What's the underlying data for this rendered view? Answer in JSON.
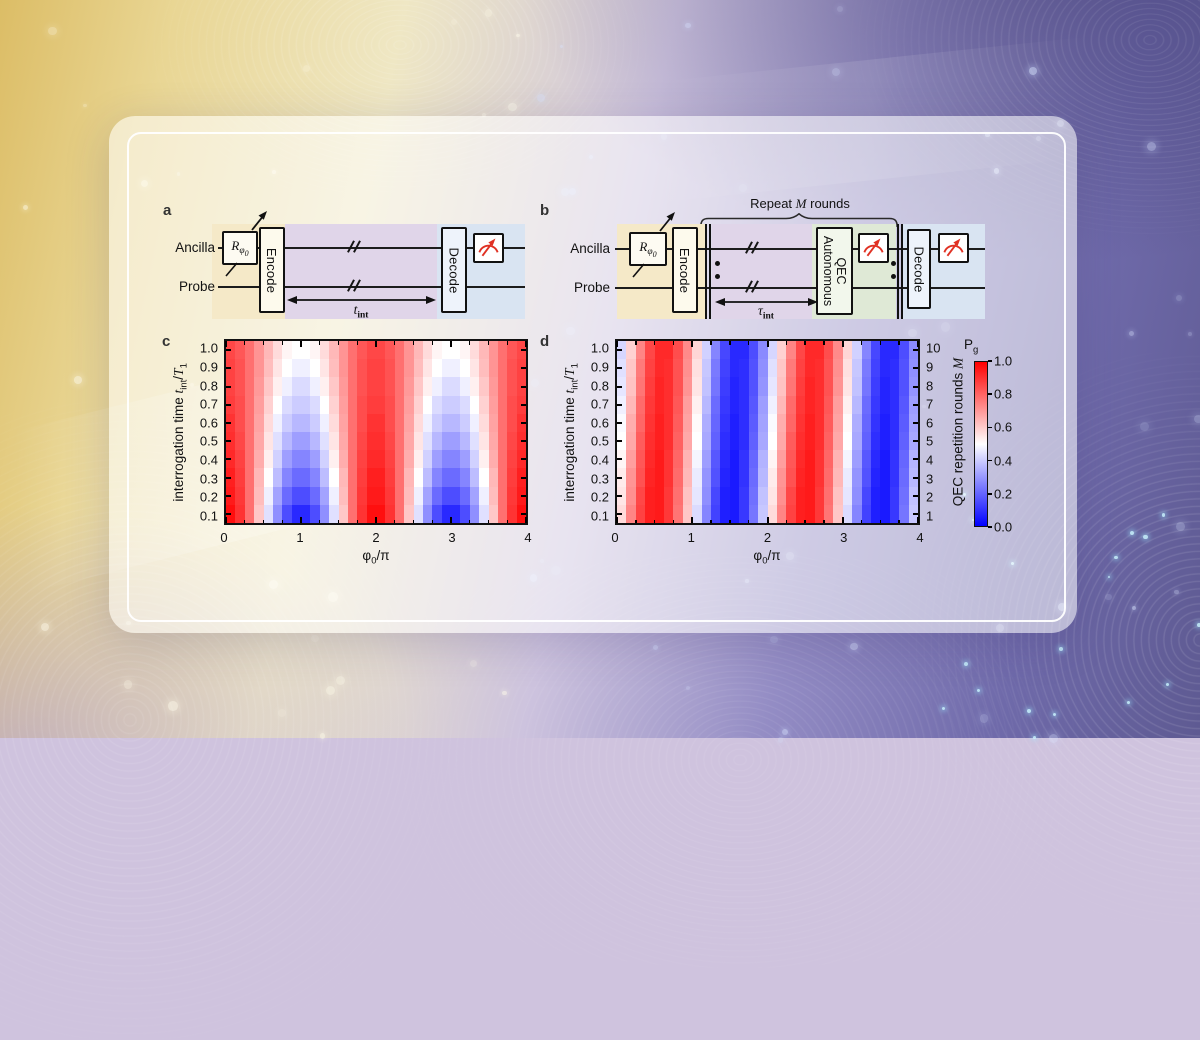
{
  "colors": {
    "region_yellow": "#f5e9c8",
    "region_purple": "#e0d5e9",
    "region_green": "#dfe9d6",
    "region_blue": "#d9e4f2",
    "meter_red": "#e03123",
    "cmap_low": "#0000ff",
    "cmap_mid": "#ffffff",
    "cmap_high": "#ff0000"
  },
  "circuit_a": {
    "panel_label": "a",
    "wires": {
      "ancilla": "Ancilla",
      "probe": "Probe"
    },
    "r_gate": {
      "base": "R",
      "sub": "φ",
      "subsub": "0"
    },
    "encode": "Encode",
    "decode": "Decode",
    "interrogation": {
      "base": "t",
      "sub": "int"
    }
  },
  "circuit_b": {
    "panel_label": "b",
    "repeat": {
      "pre": "Repeat ",
      "m": "M",
      "post": " rounds"
    },
    "wires": {
      "ancilla": "Ancilla",
      "probe": "Probe"
    },
    "r_gate": {
      "base": "R",
      "sub": "φ",
      "subsub": "0"
    },
    "encode": "Encode",
    "qec": {
      "line1": "Autonomous",
      "line2": "QEC"
    },
    "decode": "Decode",
    "interrogation": {
      "base": "τ",
      "sub": "int"
    }
  },
  "heatmap_c": {
    "panel_label": "c",
    "ylabel": {
      "prefix": "interrogation time ",
      "t": "t",
      "t_sub": "int",
      "slash": "/",
      "T": "T",
      "T_sub": "1"
    },
    "xlabel": {
      "phi": "φ",
      "phi_sub": "0",
      "slash": "/",
      "pi": "π"
    },
    "x_tick_labels": [
      "0",
      "1",
      "2",
      "3",
      "4"
    ],
    "y_tick_labels": [
      "1.0",
      "0.9",
      "0.8",
      "0.7",
      "0.6",
      "0.5",
      "0.4",
      "0.3",
      "0.2",
      "0.1"
    ]
  },
  "heatmap_d": {
    "panel_label": "d",
    "ylabel": {
      "prefix": "interrogation time ",
      "t": "t",
      "t_sub": "int",
      "slash": "/",
      "T": "T",
      "T_sub": "1"
    },
    "xlabel": {
      "phi": "φ",
      "phi_sub": "0",
      "slash": "/",
      "pi": "π"
    },
    "y2label": {
      "prefix": "QEC repetition rounds ",
      "m": "M"
    },
    "x_tick_labels": [
      "0",
      "1",
      "2",
      "3",
      "4"
    ],
    "y_tick_labels": [
      "1.0",
      "0.9",
      "0.8",
      "0.7",
      "0.6",
      "0.5",
      "0.4",
      "0.3",
      "0.2",
      "0.1"
    ],
    "y2_tick_labels": [
      "10",
      "9",
      "8",
      "7",
      "6",
      "5",
      "4",
      "3",
      "2",
      "1"
    ]
  },
  "colorbar": {
    "title": {
      "base": "P",
      "sub": "g"
    },
    "tick_labels": [
      "1.0",
      "0.8",
      "0.6",
      "0.4",
      "0.2",
      "0.0"
    ]
  },
  "chart_data": [
    {
      "id": "c",
      "type": "heatmap",
      "xlabel": "φ0/π",
      "ylabel": "interrogation time t_int/T1",
      "value_name": "Pg",
      "colormap": "blue-white-red (0=blue, 0.5=white, 1=red)",
      "x_range": [
        0,
        4
      ],
      "x_ticks": [
        0,
        1,
        2,
        3,
        4
      ],
      "x_minor_tick_step": 0.25,
      "n_cols": 32,
      "col_centers_start": 0.0625,
      "col_step": 0.125,
      "y_ticks": [
        0.1,
        0.2,
        0.3,
        0.4,
        0.5,
        0.6,
        0.7,
        0.8,
        0.9,
        1.0
      ],
      "rows_bottom_to_top_t": [
        0.1,
        0.2,
        0.3,
        0.4,
        0.5,
        0.6,
        0.7,
        0.8,
        0.9,
        1.0
      ],
      "values": [
        [
          0.97,
          0.9,
          0.78,
          0.61,
          0.44,
          0.28,
          0.15,
          0.08,
          0.08,
          0.15,
          0.28,
          0.44,
          0.61,
          0.78,
          0.9,
          0.97,
          0.97,
          0.9,
          0.78,
          0.61,
          0.44,
          0.28,
          0.15,
          0.08,
          0.08,
          0.15,
          0.28,
          0.44,
          0.61,
          0.78,
          0.9,
          0.97
        ],
        [
          0.95,
          0.89,
          0.78,
          0.63,
          0.47,
          0.32,
          0.21,
          0.15,
          0.15,
          0.21,
          0.32,
          0.47,
          0.63,
          0.78,
          0.89,
          0.95,
          0.95,
          0.89,
          0.78,
          0.63,
          0.47,
          0.32,
          0.21,
          0.15,
          0.15,
          0.21,
          0.32,
          0.47,
          0.63,
          0.78,
          0.89,
          0.95
        ],
        [
          0.94,
          0.88,
          0.78,
          0.64,
          0.5,
          0.37,
          0.26,
          0.21,
          0.21,
          0.26,
          0.37,
          0.5,
          0.64,
          0.78,
          0.88,
          0.94,
          0.94,
          0.88,
          0.78,
          0.64,
          0.5,
          0.37,
          0.26,
          0.21,
          0.21,
          0.26,
          0.37,
          0.5,
          0.64,
          0.78,
          0.88,
          0.94
        ],
        [
          0.92,
          0.87,
          0.78,
          0.66,
          0.53,
          0.41,
          0.31,
          0.26,
          0.26,
          0.31,
          0.41,
          0.53,
          0.66,
          0.78,
          0.87,
          0.92,
          0.92,
          0.87,
          0.78,
          0.66,
          0.53,
          0.41,
          0.31,
          0.26,
          0.26,
          0.31,
          0.41,
          0.53,
          0.66,
          0.78,
          0.87,
          0.92
        ],
        [
          0.91,
          0.86,
          0.78,
          0.67,
          0.55,
          0.44,
          0.36,
          0.31,
          0.31,
          0.36,
          0.44,
          0.55,
          0.67,
          0.78,
          0.86,
          0.91,
          0.91,
          0.86,
          0.78,
          0.67,
          0.55,
          0.44,
          0.36,
          0.31,
          0.31,
          0.36,
          0.44,
          0.55,
          0.67,
          0.78,
          0.86,
          0.91
        ],
        [
          0.9,
          0.85,
          0.78,
          0.68,
          0.57,
          0.47,
          0.4,
          0.36,
          0.36,
          0.4,
          0.47,
          0.57,
          0.68,
          0.78,
          0.85,
          0.9,
          0.9,
          0.85,
          0.78,
          0.68,
          0.57,
          0.47,
          0.4,
          0.36,
          0.36,
          0.4,
          0.47,
          0.57,
          0.68,
          0.78,
          0.85,
          0.9
        ],
        [
          0.88,
          0.85,
          0.78,
          0.69,
          0.59,
          0.5,
          0.43,
          0.4,
          0.4,
          0.43,
          0.5,
          0.59,
          0.69,
          0.78,
          0.85,
          0.88,
          0.88,
          0.85,
          0.78,
          0.69,
          0.59,
          0.5,
          0.43,
          0.4,
          0.4,
          0.43,
          0.5,
          0.59,
          0.69,
          0.78,
          0.85,
          0.88
        ],
        [
          0.87,
          0.84,
          0.78,
          0.7,
          0.61,
          0.53,
          0.47,
          0.43,
          0.43,
          0.47,
          0.53,
          0.61,
          0.7,
          0.78,
          0.84,
          0.87,
          0.87,
          0.84,
          0.78,
          0.7,
          0.61,
          0.53,
          0.47,
          0.43,
          0.43,
          0.47,
          0.53,
          0.61,
          0.7,
          0.78,
          0.84,
          0.87
        ],
        [
          0.87,
          0.84,
          0.78,
          0.71,
          0.63,
          0.55,
          0.5,
          0.47,
          0.47,
          0.5,
          0.55,
          0.63,
          0.71,
          0.78,
          0.84,
          0.87,
          0.87,
          0.84,
          0.78,
          0.71,
          0.63,
          0.55,
          0.5,
          0.47,
          0.47,
          0.5,
          0.55,
          0.63,
          0.71,
          0.78,
          0.84,
          0.87
        ],
        [
          0.86,
          0.83,
          0.78,
          0.71,
          0.64,
          0.57,
          0.52,
          0.5,
          0.5,
          0.52,
          0.57,
          0.64,
          0.71,
          0.78,
          0.83,
          0.86,
          0.86,
          0.83,
          0.78,
          0.71,
          0.64,
          0.57,
          0.52,
          0.5,
          0.5,
          0.52,
          0.57,
          0.64,
          0.71,
          0.78,
          0.83,
          0.86
        ]
      ]
    },
    {
      "id": "d",
      "type": "heatmap",
      "xlabel": "φ0/π",
      "ylabel": "interrogation time t_int/T1",
      "y2label": "QEC repetition rounds M",
      "value_name": "Pg",
      "colormap": "blue-white-red (0=blue, 0.5=white, 1=red)",
      "x_range": [
        0,
        4
      ],
      "x_ticks": [
        0,
        1,
        2,
        3,
        4
      ],
      "x_minor_tick_step": 0.25,
      "n_cols": 32,
      "col_centers_start": 0.0625,
      "col_step": 0.125,
      "y_ticks": [
        0.1,
        0.2,
        0.3,
        0.4,
        0.5,
        0.6,
        0.7,
        0.8,
        0.9,
        1.0
      ],
      "y2_ticks": [
        1,
        2,
        3,
        4,
        5,
        6,
        7,
        8,
        9,
        10
      ],
      "rows_bottom_to_top_t": [
        0.1,
        0.2,
        0.3,
        0.4,
        0.5,
        0.6,
        0.7,
        0.8,
        0.9,
        1.0
      ],
      "values": [
        [
          0.57,
          0.74,
          0.87,
          0.94,
          0.95,
          0.89,
          0.77,
          0.61,
          0.43,
          0.26,
          0.13,
          0.06,
          0.05,
          0.11,
          0.23,
          0.39,
          0.57,
          0.74,
          0.87,
          0.94,
          0.95,
          0.89,
          0.77,
          0.61,
          0.43,
          0.26,
          0.13,
          0.06,
          0.05,
          0.11,
          0.23,
          0.39
        ],
        [
          0.55,
          0.72,
          0.86,
          0.94,
          0.95,
          0.89,
          0.78,
          0.62,
          0.45,
          0.28,
          0.14,
          0.06,
          0.05,
          0.11,
          0.22,
          0.38,
          0.55,
          0.72,
          0.86,
          0.94,
          0.95,
          0.89,
          0.78,
          0.62,
          0.45,
          0.28,
          0.14,
          0.06,
          0.05,
          0.11,
          0.22,
          0.38
        ],
        [
          0.54,
          0.71,
          0.84,
          0.93,
          0.95,
          0.9,
          0.79,
          0.64,
          0.46,
          0.29,
          0.16,
          0.07,
          0.05,
          0.1,
          0.21,
          0.36,
          0.54,
          0.71,
          0.84,
          0.93,
          0.95,
          0.9,
          0.79,
          0.64,
          0.46,
          0.29,
          0.16,
          0.07,
          0.05,
          0.1,
          0.21,
          0.36
        ],
        [
          0.52,
          0.69,
          0.83,
          0.92,
          0.95,
          0.9,
          0.8,
          0.65,
          0.48,
          0.31,
          0.17,
          0.08,
          0.05,
          0.1,
          0.2,
          0.35,
          0.52,
          0.69,
          0.83,
          0.92,
          0.95,
          0.9,
          0.8,
          0.65,
          0.48,
          0.31,
          0.17,
          0.08,
          0.05,
          0.1,
          0.2,
          0.35
        ],
        [
          0.5,
          0.67,
          0.82,
          0.91,
          0.94,
          0.91,
          0.81,
          0.67,
          0.5,
          0.33,
          0.19,
          0.09,
          0.06,
          0.09,
          0.19,
          0.33,
          0.5,
          0.67,
          0.82,
          0.91,
          0.94,
          0.91,
          0.81,
          0.67,
          0.5,
          0.33,
          0.19,
          0.09,
          0.06,
          0.09,
          0.19,
          0.33
        ],
        [
          0.49,
          0.66,
          0.8,
          0.9,
          0.94,
          0.91,
          0.82,
          0.68,
          0.51,
          0.34,
          0.2,
          0.1,
          0.06,
          0.09,
          0.18,
          0.32,
          0.49,
          0.66,
          0.8,
          0.9,
          0.94,
          0.91,
          0.82,
          0.68,
          0.51,
          0.34,
          0.2,
          0.1,
          0.06,
          0.09,
          0.18,
          0.32
        ],
        [
          0.47,
          0.64,
          0.79,
          0.89,
          0.93,
          0.91,
          0.83,
          0.69,
          0.53,
          0.36,
          0.21,
          0.11,
          0.07,
          0.09,
          0.17,
          0.31,
          0.47,
          0.64,
          0.79,
          0.89,
          0.93,
          0.91,
          0.83,
          0.69,
          0.53,
          0.36,
          0.21,
          0.11,
          0.07,
          0.09,
          0.17,
          0.31
        ],
        [
          0.45,
          0.62,
          0.77,
          0.88,
          0.93,
          0.91,
          0.84,
          0.71,
          0.55,
          0.38,
          0.23,
          0.12,
          0.07,
          0.09,
          0.16,
          0.29,
          0.45,
          0.62,
          0.77,
          0.88,
          0.93,
          0.91,
          0.84,
          0.71,
          0.55,
          0.38,
          0.23,
          0.12,
          0.07,
          0.09,
          0.16,
          0.29
        ],
        [
          0.44,
          0.61,
          0.76,
          0.87,
          0.92,
          0.91,
          0.84,
          0.72,
          0.56,
          0.39,
          0.24,
          0.13,
          0.08,
          0.09,
          0.16,
          0.28,
          0.44,
          0.61,
          0.76,
          0.87,
          0.92,
          0.91,
          0.84,
          0.72,
          0.56,
          0.39,
          0.24,
          0.13,
          0.08,
          0.09,
          0.16,
          0.28
        ],
        [
          0.42,
          0.59,
          0.74,
          0.86,
          0.92,
          0.92,
          0.85,
          0.73,
          0.58,
          0.41,
          0.26,
          0.14,
          0.08,
          0.08,
          0.15,
          0.27,
          0.42,
          0.59,
          0.74,
          0.86,
          0.92,
          0.92,
          0.85,
          0.73,
          0.58,
          0.41,
          0.26,
          0.14,
          0.08,
          0.08,
          0.15,
          0.27
        ]
      ]
    }
  ]
}
